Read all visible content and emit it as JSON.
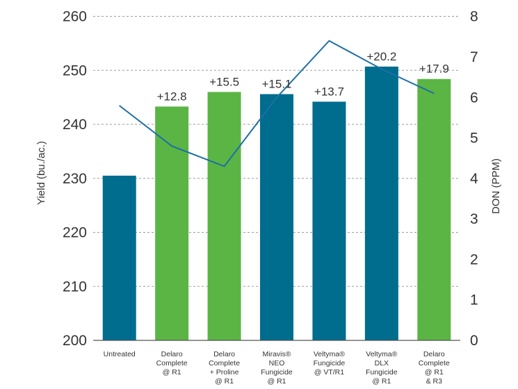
{
  "chart_data": {
    "type": "bar",
    "categories": [
      [
        "Untreated"
      ],
      [
        "Delaro",
        "Complete",
        "@ R1"
      ],
      [
        "Delaro",
        "Complete",
        "+ Proline",
        "@ R1"
      ],
      [
        "Miravis®",
        "NEO",
        "Fungicide",
        "@ R1"
      ],
      [
        "Veltyma®",
        "Fungicide",
        "@ VT/R1"
      ],
      [
        "Veltyma®",
        "DLX",
        "Fungicide",
        "@ R1"
      ],
      [
        "Delaro",
        "Complete",
        "@ R1",
        "& R3"
      ]
    ],
    "series": [
      {
        "values": [
          230.5,
          243.3,
          246.0,
          245.6,
          244.2,
          250.7,
          248.4
        ],
        "bar_labels": [
          "",
          "+12.8",
          "+15.5",
          "+15.1",
          "+13.7",
          "+20.2",
          "+17.9"
        ],
        "bar_colors": [
          "#006c8e",
          "#5bb544",
          "#5bb544",
          "#006c8e",
          "#006c8e",
          "#006c8e",
          "#5bb544"
        ]
      },
      {
        "type": "line",
        "axis": "right",
        "color": "#1e6fa6",
        "values": [
          5.8,
          4.8,
          4.3,
          6.0,
          7.4,
          6.7,
          6.1
        ]
      }
    ],
    "ylabel": "Yield (bu./ac.)",
    "y2label": "DON (PPM)",
    "ylim": [
      200,
      262
    ],
    "y2lim": [
      0,
      8.27
    ],
    "yticks": [
      200,
      210,
      220,
      230,
      240,
      250,
      260
    ],
    "y2ticks": [
      0,
      1,
      2,
      3,
      4,
      5,
      6,
      7,
      8
    ],
    "grid": true
  }
}
